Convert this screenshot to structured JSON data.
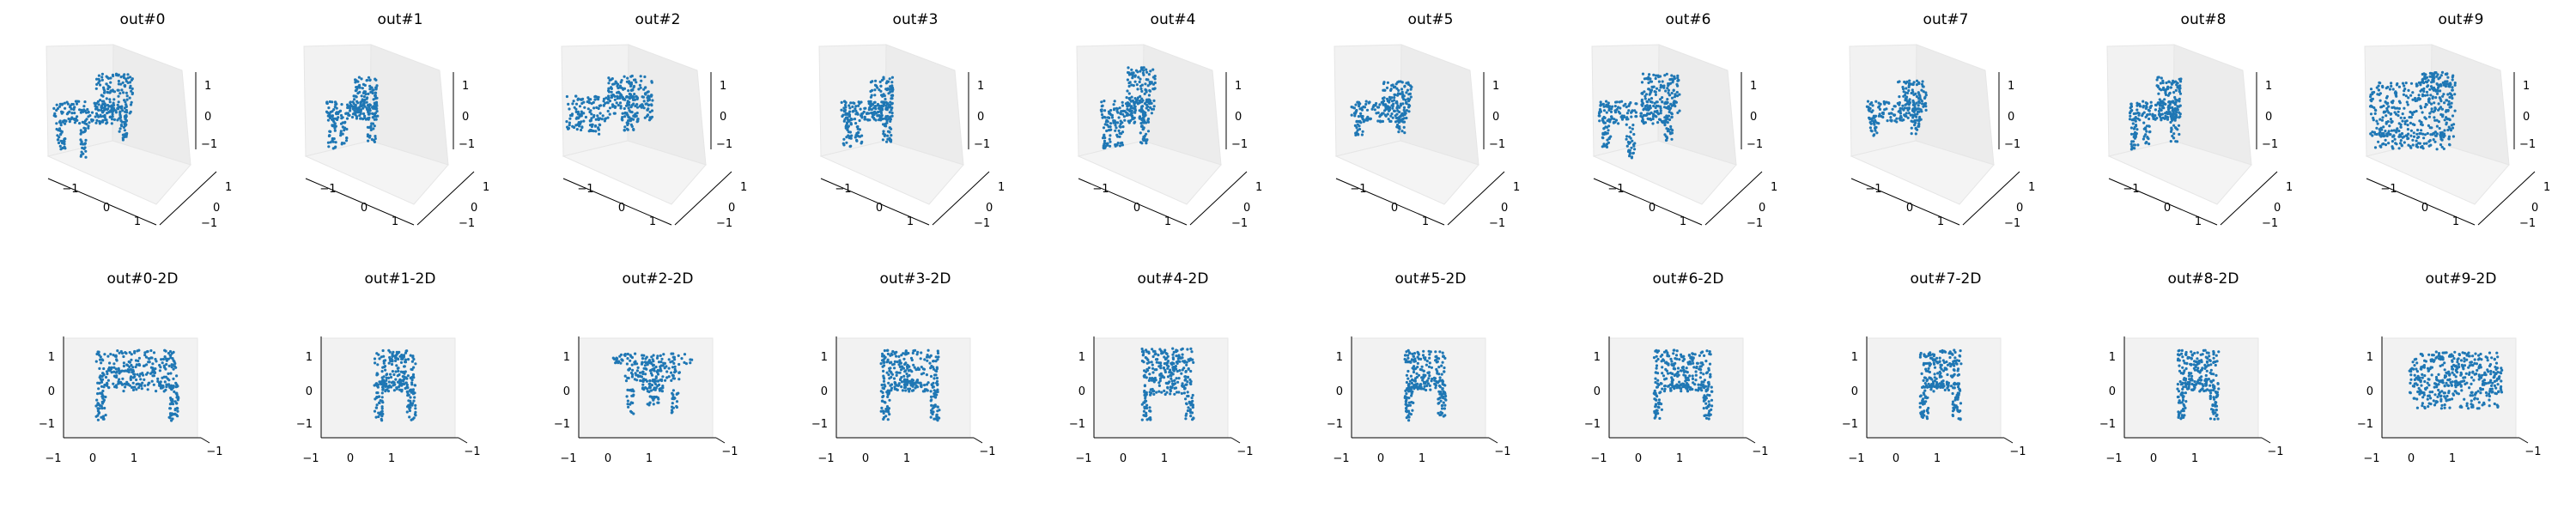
{
  "chart_data": {
    "type": "scatter",
    "description_series_color": "#1f77b4",
    "pane_color": "#f2f2f2",
    "grid": false,
    "panels_3d": [
      {
        "title": "out#0",
        "shape": "chair-wide",
        "x_ticks": [
          "−1",
          "0",
          "1"
        ],
        "y_ticks": [
          "1",
          "0",
          "−1"
        ],
        "z_ticks": [
          "1",
          "0",
          "−1"
        ]
      },
      {
        "title": "out#1",
        "shape": "chair",
        "x_ticks": [
          "−1",
          "0",
          "1"
        ],
        "y_ticks": [
          "1",
          "0",
          "−1"
        ],
        "z_ticks": [
          "1",
          "0",
          "−1"
        ]
      },
      {
        "title": "out#2",
        "shape": "chair-flat",
        "x_ticks": [
          "−1",
          "0",
          "1"
        ],
        "y_ticks": [
          "1",
          "0",
          "−1"
        ],
        "z_ticks": [
          "1",
          "0",
          "−1"
        ]
      },
      {
        "title": "out#3",
        "shape": "chair",
        "x_ticks": [
          "−1",
          "0",
          "1"
        ],
        "y_ticks": [
          "1",
          "0",
          "−1"
        ],
        "z_ticks": [
          "1",
          "0",
          "−1"
        ]
      },
      {
        "title": "out#4",
        "shape": "chair-tall",
        "x_ticks": [
          "−1",
          "0",
          "1"
        ],
        "y_ticks": [
          "1",
          "0",
          "−1"
        ],
        "z_ticks": [
          "1",
          "0",
          "−1"
        ]
      },
      {
        "title": "out#5",
        "shape": "chair-small",
        "x_ticks": [
          "−1",
          "0",
          "1"
        ],
        "y_ticks": [
          "1",
          "0",
          "−1"
        ],
        "z_ticks": [
          "1",
          "0",
          "−1"
        ]
      },
      {
        "title": "out#6",
        "shape": "chair-wide",
        "x_ticks": [
          "−1",
          "0",
          "1"
        ],
        "y_ticks": [
          "1",
          "0",
          "−1"
        ],
        "z_ticks": [
          "1",
          "0",
          "−1"
        ]
      },
      {
        "title": "out#7",
        "shape": "chair-small",
        "x_ticks": [
          "−1",
          "0",
          "1"
        ],
        "y_ticks": [
          "1",
          "0",
          "−1"
        ],
        "z_ticks": [
          "1",
          "0",
          "−1"
        ]
      },
      {
        "title": "out#8",
        "shape": "chair",
        "x_ticks": [
          "−1",
          "0",
          "1"
        ],
        "y_ticks": [
          "1",
          "0",
          "−1"
        ],
        "z_ticks": [
          "1",
          "0",
          "−1"
        ]
      },
      {
        "title": "out#9",
        "shape": "sofa",
        "x_ticks": [
          "−1",
          "0",
          "1"
        ],
        "y_ticks": [
          "1",
          "0",
          "−1"
        ],
        "z_ticks": [
          "1",
          "0",
          "−1"
        ]
      }
    ],
    "panels_2d": [
      {
        "title": "out#0-2D",
        "shape": "front-wide",
        "x_ticks": [
          "−1",
          "0",
          "1"
        ],
        "y_ticks": [
          "1",
          "0",
          "−1"
        ],
        "corner_tick": "−1"
      },
      {
        "title": "out#1-2D",
        "shape": "front-narrow",
        "x_ticks": [
          "−1",
          "0",
          "1"
        ],
        "y_ticks": [
          "1",
          "0",
          "−1"
        ],
        "corner_tick": "−1"
      },
      {
        "title": "out#2-2D",
        "shape": "front-bowl",
        "x_ticks": [
          "−1",
          "0",
          "1"
        ],
        "y_ticks": [
          "1",
          "0",
          "−1"
        ],
        "corner_tick": "−1"
      },
      {
        "title": "out#3-2D",
        "shape": "front-medium",
        "x_ticks": [
          "−1",
          "0",
          "1"
        ],
        "y_ticks": [
          "1",
          "0",
          "−1"
        ],
        "corner_tick": "−1"
      },
      {
        "title": "out#4-2D",
        "shape": "front-tall",
        "x_ticks": [
          "−1",
          "0",
          "1"
        ],
        "y_ticks": [
          "1",
          "0",
          "−1"
        ],
        "corner_tick": "−1"
      },
      {
        "title": "out#5-2D",
        "shape": "front-narrow",
        "x_ticks": [
          "−1",
          "0",
          "1"
        ],
        "y_ticks": [
          "1",
          "0",
          "−1"
        ],
        "corner_tick": "−1"
      },
      {
        "title": "out#6-2D",
        "shape": "front-medium",
        "x_ticks": [
          "−1",
          "0",
          "1"
        ],
        "y_ticks": [
          "1",
          "0",
          "−1"
        ],
        "corner_tick": "−1"
      },
      {
        "title": "out#7-2D",
        "shape": "front-narrow",
        "x_ticks": [
          "−1",
          "0",
          "1"
        ],
        "y_ticks": [
          "1",
          "0",
          "−1"
        ],
        "corner_tick": "−1"
      },
      {
        "title": "out#8-2D",
        "shape": "front-narrow",
        "x_ticks": [
          "−1",
          "0",
          "1"
        ],
        "y_ticks": [
          "1",
          "0",
          "−1"
        ],
        "corner_tick": "−1"
      },
      {
        "title": "out#9-2D",
        "shape": "front-sofa",
        "x_ticks": [
          "−1",
          "0",
          "1"
        ],
        "y_ticks": [
          "1",
          "0",
          "−1"
        ],
        "corner_tick": "−1"
      }
    ]
  }
}
